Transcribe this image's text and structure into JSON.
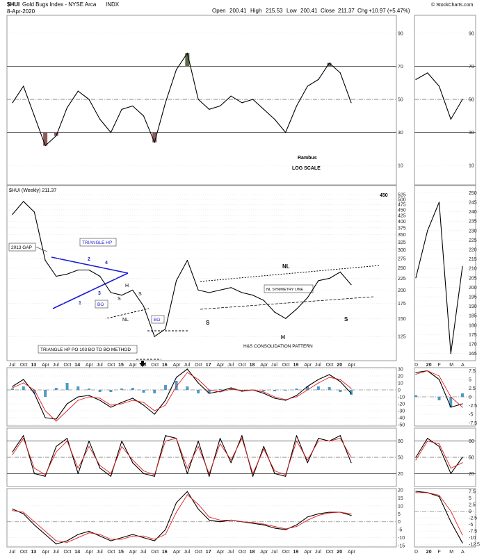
{
  "header": {
    "symbol": "$HUI",
    "name": "Gold Bugs Index - NYSE Arca",
    "exchange_tag": "INDX",
    "date": "8-Apr-2020",
    "open_label": "Open",
    "open": "200.41",
    "high_label": "High",
    "high": "215.53",
    "low_label": "Low",
    "low": "200.41",
    "close_label": "Close",
    "close": "211.37",
    "chg_label": "Chg",
    "chg": "+10.97 (+5.47%)",
    "copyright": "© StockCharts.com"
  },
  "colors": {
    "price": "#000000",
    "ma": "#3a3ad0",
    "signal": "#e02020",
    "histogram": "#3d8fc0",
    "rsi_fill": "#8b5a5a",
    "rsi_fill_top": "#5a6b4a",
    "annotation_blue": "#1a1ad6"
  },
  "annotations": {
    "rambus": "Rambus",
    "log_scale": "LOG SCALE",
    "price_label": "$HUI (Weekly) 211.37",
    "corner_450": "450",
    "gap_2013": "2013 GAP",
    "triangle_hp": "TRIANGLE HP",
    "tri_1": "1",
    "tri_2": "2",
    "tri_3": "3",
    "tri_4": "4",
    "bo": "BO",
    "bo2": "BO",
    "s_left_small": "S",
    "h_small": "H",
    "s_right_small": "S",
    "nl_small": "NL",
    "triangle_po": "TRIANGLE HP PO 103 BO TO BO METHOD",
    "nl_big": "NL",
    "nl_symmetry": "NL SYMMETRY LINE",
    "s_left_big": "S",
    "h_big": "H",
    "s_right_big": "S",
    "hs_pattern": "H&S CONSOLIDATION PATTERN"
  },
  "side_x_labels": [
    "D",
    "20",
    "F",
    "M",
    "A"
  ],
  "chart_data": [
    {
      "type": "line",
      "panel": "RSI (weekly)",
      "y_ticks": [
        10,
        30,
        50,
        70,
        90
      ],
      "reference_lines": [
        30,
        50,
        70
      ],
      "ylim": [
        0,
        100
      ],
      "x": [
        "Jul 12",
        "Oct 12",
        "Jan 13",
        "Apr 13",
        "Jul 13",
        "Oct 13",
        "Jan 14",
        "Apr 14",
        "Jul 14",
        "Oct 14",
        "Jan 15",
        "Apr 15",
        "Jul 15",
        "Oct 15",
        "Jan 16",
        "Apr 16",
        "Jul 16",
        "Oct 16",
        "Jan 17",
        "Apr 17",
        "Jul 17",
        "Oct 17",
        "Jan 18",
        "Apr 18",
        "Jul 18",
        "Oct 18",
        "Jan 19",
        "Apr 19",
        "Jul 19",
        "Oct 19",
        "Jan 20",
        "Apr 20"
      ],
      "values": [
        48,
        58,
        40,
        22,
        28,
        45,
        55,
        50,
        38,
        30,
        44,
        46,
        40,
        24,
        48,
        68,
        78,
        50,
        44,
        46,
        52,
        48,
        50,
        44,
        38,
        30,
        46,
        58,
        62,
        72,
        66,
        48
      ]
    },
    {
      "type": "line",
      "panel": "Price $HUI (Weekly) log scale",
      "y_ticks": [
        125,
        150,
        175,
        200,
        225,
        250,
        275,
        300,
        325,
        350,
        375,
        400,
        425,
        450,
        475,
        500,
        525
      ],
      "ylim": [
        100,
        525
      ],
      "x": [
        "Jul 12",
        "Oct 12",
        "Jan 13",
        "Apr 13",
        "Jul 13",
        "Oct 13",
        "Jan 14",
        "Apr 14",
        "Jul 14",
        "Oct 14",
        "Jan 15",
        "Apr 15",
        "Jul 15",
        "Oct 15",
        "Jan 16",
        "Apr 16",
        "Jul 16",
        "Oct 16",
        "Jan 17",
        "Apr 17",
        "Jul 17",
        "Oct 17",
        "Jan 18",
        "Apr 18",
        "Jul 18",
        "Oct 18",
        "Jan 19",
        "Apr 19",
        "Jul 19",
        "Oct 19",
        "Jan 20",
        "Apr 20"
      ],
      "series": [
        {
          "name": "$HUI (Weekly)",
          "values": [
            430,
            490,
            440,
            270,
            230,
            235,
            245,
            245,
            230,
            195,
            190,
            200,
            170,
            125,
            135,
            220,
            270,
            200,
            195,
            200,
            205,
            195,
            190,
            180,
            160,
            150,
            165,
            185,
            220,
            225,
            240,
            211
          ]
        }
      ]
    },
    {
      "type": "line",
      "panel": "MACD",
      "y_ticks": [
        -50,
        -40,
        -30,
        -20,
        -10,
        0,
        10,
        20,
        30
      ],
      "ylim": [
        -50,
        30
      ],
      "x": [
        "Jul 12",
        "Oct 12",
        "Jan 13",
        "Apr 13",
        "Jul 13",
        "Oct 13",
        "Jan 14",
        "Apr 14",
        "Jul 14",
        "Oct 14",
        "Jan 15",
        "Apr 15",
        "Jul 15",
        "Oct 15",
        "Jan 16",
        "Apr 16",
        "Jul 16",
        "Oct 16",
        "Jan 17",
        "Apr 17",
        "Jul 17",
        "Oct 17",
        "Jan 18",
        "Apr 18",
        "Jul 18",
        "Oct 18",
        "Jan 19",
        "Apr 19",
        "Jul 19",
        "Oct 19",
        "Jan 20",
        "Apr 20"
      ],
      "series": [
        {
          "name": "MACD",
          "values": [
            5,
            15,
            -5,
            -40,
            -42,
            -20,
            -10,
            -8,
            -15,
            -25,
            -18,
            -12,
            -22,
            -35,
            -15,
            18,
            30,
            10,
            -5,
            -2,
            3,
            -2,
            0,
            -5,
            -12,
            -15,
            -8,
            5,
            15,
            22,
            12,
            -5
          ]
        },
        {
          "name": "Signal",
          "values": [
            3,
            10,
            0,
            -30,
            -45,
            -30,
            -15,
            -10,
            -12,
            -22,
            -20,
            -15,
            -18,
            -30,
            -22,
            5,
            25,
            15,
            0,
            -3,
            1,
            -1,
            0,
            -3,
            -10,
            -14,
            -10,
            0,
            10,
            18,
            15,
            2
          ]
        }
      ]
    },
    {
      "type": "line",
      "panel": "Stochastic",
      "y_ticks": [
        20,
        50,
        80
      ],
      "ylim": [
        0,
        100
      ],
      "x": [
        "Jul 12",
        "Oct 12",
        "Jan 13",
        "Apr 13",
        "Jul 13",
        "Oct 13",
        "Jan 14",
        "Apr 14",
        "Jul 14",
        "Oct 14",
        "Jan 15",
        "Apr 15",
        "Jul 15",
        "Oct 15",
        "Jan 16",
        "Apr 16",
        "Jul 16",
        "Oct 16",
        "Jan 17",
        "Apr 17",
        "Jul 17",
        "Oct 17",
        "Jan 18",
        "Apr 18",
        "Jul 18",
        "Oct 18",
        "Jan 19",
        "Apr 19",
        "Jul 19",
        "Oct 19",
        "Jan 20",
        "Apr 20"
      ],
      "series": [
        {
          "name": "%K",
          "values": [
            60,
            90,
            20,
            15,
            70,
            85,
            20,
            80,
            30,
            15,
            80,
            40,
            20,
            15,
            90,
            85,
            20,
            80,
            15,
            85,
            40,
            90,
            15,
            70,
            20,
            15,
            90,
            40,
            85,
            80,
            90,
            40
          ]
        },
        {
          "name": "%D",
          "values": [
            55,
            85,
            30,
            18,
            60,
            80,
            30,
            70,
            35,
            20,
            70,
            45,
            25,
            18,
            80,
            85,
            30,
            70,
            20,
            75,
            45,
            85,
            20,
            65,
            25,
            18,
            80,
            45,
            80,
            80,
            85,
            50
          ]
        }
      ]
    },
    {
      "type": "line",
      "panel": "Oscillator",
      "y_ticks": [
        -15,
        -10,
        -5,
        0,
        5,
        10,
        15,
        20
      ],
      "ylim": [
        -15,
        20
      ],
      "x": [
        "Jul 12",
        "Oct 12",
        "Jan 13",
        "Apr 13",
        "Jul 13",
        "Oct 13",
        "Jan 14",
        "Apr 14",
        "Jul 14",
        "Oct 14",
        "Jan 15",
        "Apr 15",
        "Jul 15",
        "Oct 15",
        "Jan 16",
        "Apr 16",
        "Jul 16",
        "Oct 16",
        "Jan 17",
        "Apr 17",
        "Jul 17",
        "Oct 17",
        "Jan 18",
        "Apr 18",
        "Jul 18",
        "Oct 18",
        "Jan 19",
        "Apr 19",
        "Jul 19",
        "Oct 19",
        "Jan 20",
        "Apr 20"
      ],
      "series": [
        {
          "name": "Oscillator",
          "values": [
            8,
            5,
            -2,
            -8,
            -14,
            -12,
            -8,
            -6,
            -9,
            -12,
            -10,
            -8,
            -10,
            -12,
            -5,
            12,
            19,
            8,
            1,
            0,
            1,
            0,
            -1,
            -2,
            -4,
            -5,
            -2,
            3,
            5,
            6,
            6,
            4
          ]
        },
        {
          "name": "Signal",
          "values": [
            7,
            6,
            0,
            -6,
            -12,
            -13,
            -10,
            -7,
            -8,
            -11,
            -11,
            -9,
            -9,
            -11,
            -8,
            6,
            17,
            11,
            3,
            1,
            1,
            0,
            -0.5,
            -1.5,
            -3,
            -4.5,
            -3,
            1,
            4,
            5.5,
            6,
            5
          ]
        }
      ]
    },
    {
      "type": "line",
      "panel": "Side: RSI daily",
      "y_ticks": [
        10,
        30,
        50,
        70,
        90
      ],
      "ylim": [
        0,
        100
      ],
      "x": [
        "D",
        "20",
        "F",
        "M",
        "A"
      ],
      "values": [
        62,
        66,
        58,
        38,
        50
      ]
    },
    {
      "type": "line",
      "panel": "Side: Price daily",
      "y_ticks": [
        165,
        170,
        175,
        180,
        185,
        190,
        195,
        200,
        205,
        210,
        215,
        220,
        225,
        230,
        235,
        240,
        245,
        250
      ],
      "ylim": [
        163,
        252
      ],
      "x": [
        "D",
        "20",
        "F",
        "M",
        "A"
      ],
      "series": [
        {
          "name": "$HUI (Daily)",
          "values": [
            205,
            230,
            245,
            165,
            211
          ]
        }
      ]
    },
    {
      "type": "line",
      "panel": "Side: MACD daily",
      "y_ticks": [
        -7.5,
        -5.0,
        -2.5,
        0.0,
        2.5,
        5.0,
        7.5
      ],
      "ylim": [
        -8,
        8
      ],
      "x": [
        "D",
        "20",
        "F",
        "M",
        "A"
      ],
      "series": [
        {
          "name": "MACD",
          "values": [
            7,
            7.5,
            5,
            -3,
            -2
          ]
        },
        {
          "name": "Signal",
          "values": [
            6.5,
            7.5,
            6,
            0,
            -3
          ]
        }
      ]
    },
    {
      "type": "line",
      "panel": "Side: Stochastic daily",
      "y_ticks": [
        20,
        50,
        80
      ],
      "ylim": [
        0,
        100
      ],
      "x": [
        "D",
        "20",
        "F",
        "M",
        "A"
      ],
      "series": [
        {
          "name": "%K",
          "values": [
            50,
            85,
            70,
            20,
            50
          ]
        },
        {
          "name": "%D",
          "values": [
            45,
            80,
            75,
            30,
            40
          ]
        }
      ]
    },
    {
      "type": "line",
      "panel": "Side: Oscillator daily",
      "y_ticks": [
        -12.5,
        -10.0,
        -7.5,
        -5.0,
        -2.5,
        0.0,
        2.5,
        5.0,
        7.5
      ],
      "ylim": [
        -13,
        8
      ],
      "x": [
        "D",
        "20",
        "F",
        "M",
        "A"
      ],
      "series": [
        {
          "name": "Oscillator",
          "values": [
            7.5,
            7,
            5.5,
            -4,
            -12
          ]
        },
        {
          "name": "Signal",
          "values": [
            7,
            7,
            6,
            0,
            -9
          ]
        }
      ]
    }
  ]
}
